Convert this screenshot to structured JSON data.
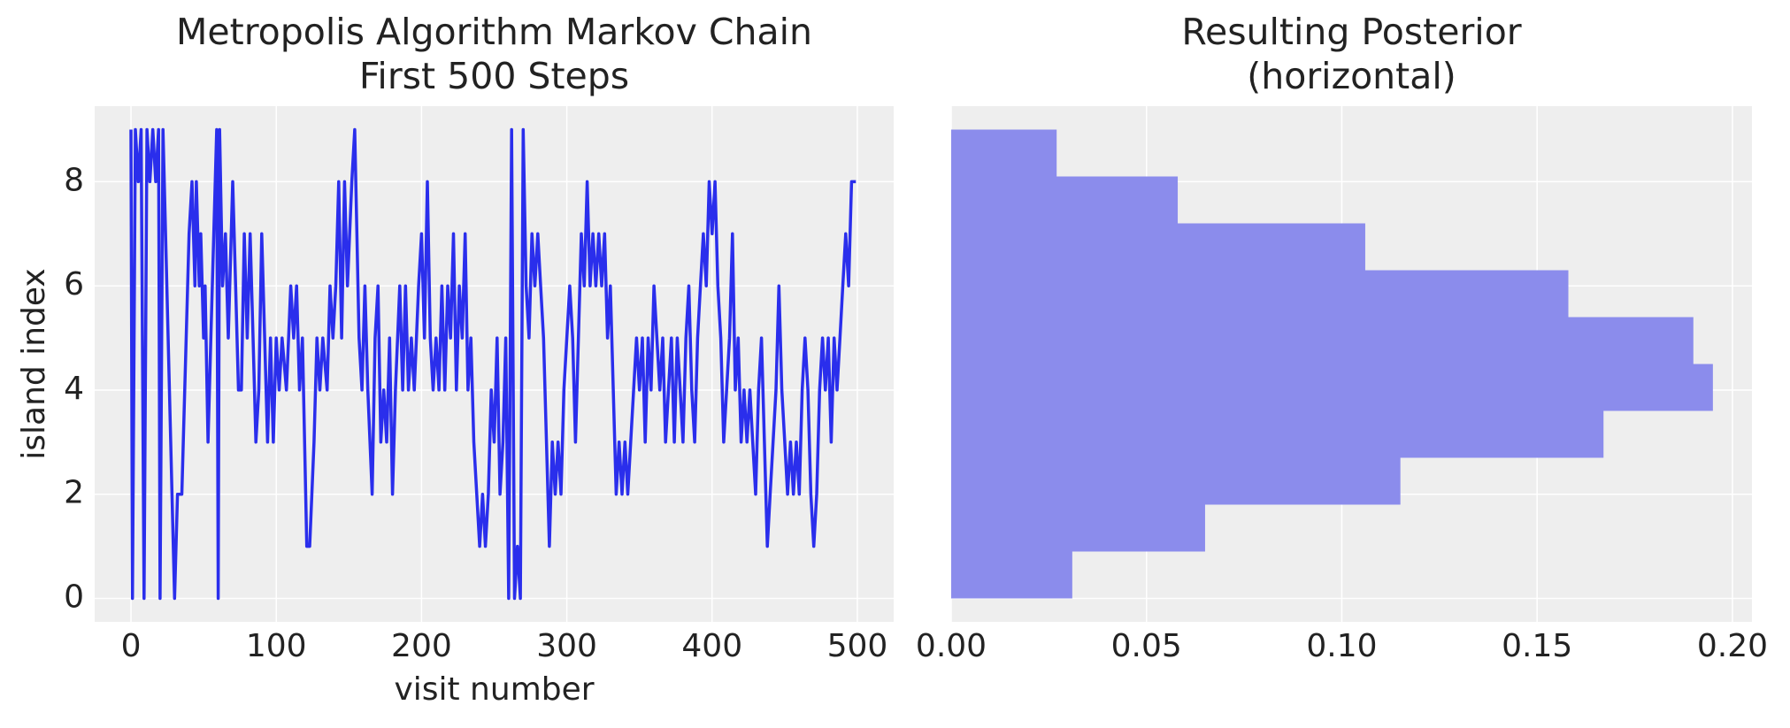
{
  "chart_data": [
    {
      "type": "line",
      "title": "Metropolis Algorithm Markov Chain",
      "subtitle": "First 500 Steps",
      "xlabel": "visit number",
      "ylabel": "island index",
      "xlim": [
        -25,
        525
      ],
      "xticks": [
        0,
        100,
        200,
        300,
        400,
        500
      ],
      "ylim": [
        -0.45,
        9.45
      ],
      "yticks": [
        0,
        2,
        4,
        6,
        8
      ],
      "grid": true,
      "series": [
        {
          "name": "chain",
          "color": "#2a2eec",
          "x": [
            0,
            1,
            3,
            5,
            7,
            9,
            11,
            13,
            15,
            17,
            19,
            20,
            22,
            30,
            32,
            35,
            40,
            42,
            44,
            45,
            47,
            48,
            50,
            51,
            53,
            55,
            57,
            59,
            60,
            61,
            63,
            65,
            67,
            70,
            72,
            74,
            76,
            78,
            80,
            82,
            84,
            86,
            88,
            90,
            92,
            94,
            96,
            98,
            100,
            102,
            104,
            107,
            110,
            112,
            114,
            116,
            118,
            121,
            123,
            126,
            128,
            130,
            132,
            135,
            137,
            139,
            141,
            143,
            145,
            147,
            149,
            152,
            154,
            157,
            159,
            161,
            163,
            166,
            168,
            170,
            172,
            174,
            176,
            178,
            180,
            182,
            185,
            187,
            189,
            191,
            193,
            195,
            198,
            200,
            202,
            204,
            206,
            208,
            210,
            212,
            214,
            216,
            218,
            220,
            222,
            224,
            226,
            228,
            230,
            232,
            234,
            236,
            238,
            240,
            242,
            244,
            246,
            248,
            250,
            252,
            254,
            256,
            258,
            260,
            262,
            264,
            266,
            268,
            270,
            272,
            274,
            276,
            278,
            280,
            282,
            284,
            286,
            288,
            290,
            292,
            294,
            296,
            298,
            300,
            302,
            304,
            306,
            308,
            310,
            312,
            314,
            316,
            318,
            320,
            322,
            324,
            326,
            328,
            330,
            332,
            334,
            336,
            338,
            340,
            342,
            344,
            346,
            348,
            350,
            352,
            354,
            356,
            358,
            360,
            362,
            364,
            366,
            368,
            370,
            372,
            374,
            376,
            378,
            380,
            382,
            384,
            386,
            388,
            390,
            392,
            394,
            396,
            398,
            400,
            402,
            404,
            406,
            408,
            410,
            412,
            414,
            416,
            418,
            420,
            422,
            424,
            426,
            428,
            430,
            432,
            434,
            436,
            438,
            440,
            442,
            444,
            446,
            448,
            450,
            452,
            454,
            456,
            458,
            460,
            462,
            464,
            466,
            468,
            470,
            472,
            474,
            476,
            478,
            480,
            482,
            484,
            486,
            488,
            490,
            492,
            494,
            496,
            499
          ],
          "values": [
            9,
            0,
            9,
            8,
            9,
            0,
            9,
            8,
            9,
            8,
            9,
            0,
            9,
            0,
            2,
            2,
            7,
            8,
            6,
            8,
            6,
            7,
            5,
            6,
            3,
            5,
            7,
            9,
            0,
            9,
            6,
            7,
            5,
            8,
            6,
            4,
            4,
            7,
            5,
            7,
            5,
            3,
            4,
            7,
            5,
            3,
            5,
            3,
            5,
            4,
            5,
            4,
            6,
            5,
            6,
            4,
            5,
            1,
            1,
            3,
            5,
            4,
            5,
            4,
            6,
            5,
            6,
            8,
            5,
            8,
            6,
            8,
            9,
            5,
            4,
            6,
            4,
            2,
            5,
            6,
            3,
            4,
            3,
            5,
            2,
            4,
            6,
            4,
            6,
            4,
            5,
            4,
            6,
            7,
            5,
            8,
            5,
            4,
            5,
            4,
            6,
            4,
            6,
            5,
            7,
            4,
            6,
            5,
            7,
            4,
            5,
            3,
            2,
            1,
            2,
            1,
            2,
            4,
            3,
            5,
            2,
            3,
            5,
            0,
            9,
            0,
            1,
            0,
            9,
            6,
            5,
            7,
            6,
            7,
            6,
            5,
            3,
            1,
            3,
            2,
            3,
            2,
            4,
            5,
            6,
            5,
            3,
            5,
            7,
            6,
            8,
            6,
            7,
            6,
            7,
            6,
            7,
            5,
            6,
            4,
            2,
            3,
            2,
            3,
            2,
            3,
            4,
            5,
            4,
            5,
            3,
            5,
            4,
            6,
            5,
            4,
            5,
            3,
            4,
            5,
            3,
            5,
            4,
            3,
            5,
            6,
            4,
            3,
            5,
            6,
            7,
            6,
            8,
            7,
            8,
            6,
            5,
            3,
            4,
            5,
            7,
            4,
            5,
            3,
            4,
            3,
            4,
            3,
            2,
            4,
            5,
            3,
            1,
            2,
            3,
            4,
            6,
            4,
            3,
            2,
            3,
            2,
            3,
            2,
            4,
            5,
            4,
            2,
            1,
            2,
            4,
            5,
            4,
            5,
            3,
            5,
            4,
            5,
            6,
            7,
            6,
            8,
            8
          ]
        }
      ]
    },
    {
      "type": "histogram",
      "orientation": "horizontal",
      "title": "Resulting Posterior",
      "subtitle": "(horizontal)",
      "xlim": [
        0,
        0.205
      ],
      "xticks": [
        {
          "value": 0,
          "label": "0.00"
        },
        {
          "value": 0.05,
          "label": "0.05"
        },
        {
          "value": 0.1,
          "label": "0.10"
        },
        {
          "value": 0.15,
          "label": "0.15"
        },
        {
          "value": 0.2,
          "label": "0.20"
        }
      ],
      "ylim": [
        -0.45,
        9.45
      ],
      "yticks": [
        0,
        2,
        4,
        6,
        8
      ],
      "grid": true,
      "color": "#8b8cec",
      "bins": [
        0,
        0.9,
        1.8,
        2.7,
        3.6,
        4.5,
        5.4,
        6.3,
        7.2,
        8.1,
        9
      ],
      "values": [
        0.031,
        0.065,
        0.115,
        0.167,
        0.195,
        0.19,
        0.158,
        0.106,
        0.058,
        0.027
      ]
    }
  ]
}
